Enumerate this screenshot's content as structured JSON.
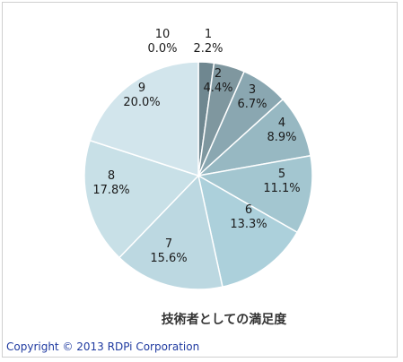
{
  "chart_data": {
    "type": "pie",
    "title": "技術者としての満足度",
    "categories": [
      "1",
      "2",
      "3",
      "4",
      "5",
      "6",
      "7",
      "8",
      "9",
      "10"
    ],
    "values": [
      2.2,
      4.4,
      6.7,
      8.9,
      11.1,
      13.3,
      15.6,
      17.8,
      20.0,
      0.0
    ],
    "value_labels": [
      "2.2%",
      "4.4%",
      "6.7%",
      "8.9%",
      "11.1%",
      "13.3%",
      "15.6%",
      "17.8%",
      "20.0%",
      "0.0%"
    ],
    "colors": [
      "#6f8790",
      "#7f979f",
      "#8aa7b1",
      "#97b8c2",
      "#a3c6d0",
      "#acd0db",
      "#bcd8e1",
      "#c8e0e7",
      "#d2e5ec",
      "#dbe9ef"
    ],
    "legend": "none"
  },
  "footer": {
    "copyright": "Copyright © 2013  RDPi Corporation"
  }
}
